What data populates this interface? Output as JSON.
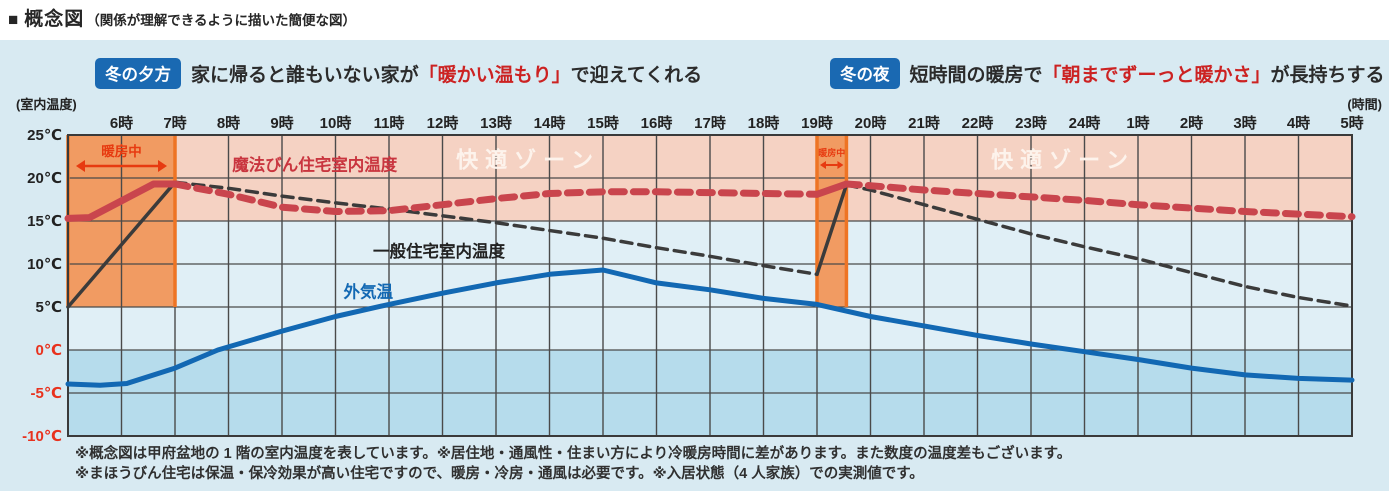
{
  "page": {
    "title_marker": "■",
    "title": "概念図",
    "title_note": "（関係が理解できるように描いた簡便な図）"
  },
  "colors": {
    "panel_bg": "#d8eaf2",
    "badge_blue": "#1a69b2",
    "highlight_red": "#cc2222",
    "axis_label_red": "#e8321e"
  },
  "callouts": [
    {
      "badge": "冬の夕方",
      "pre": "家に帰ると誰もいない家が",
      "highlight": "「暖かい温もり」",
      "post": "で迎えてくれる"
    },
    {
      "badge": "冬の夜",
      "pre": "短時間の暖房で",
      "highlight": "「朝までずーっと暖かさ」",
      "post": "が長持ちする"
    }
  ],
  "notes": [
    "※概念図は甲府盆地の 1 階の室内温度を表しています。※居住地・通風性・住まい方により冷暖房時間に差があります。また数度の温度差もございます。",
    "※まほうびん住宅は保温・保冷効果が高い住宅ですので、暖房・冷房・通風は必要です。※入居状態（4 人家族）での実測値です。"
  ],
  "chart_data": {
    "type": "line",
    "x_axis": {
      "unit_label": "(時間)",
      "start_hour": 5,
      "end_hour": 29,
      "tick_hours": [
        6,
        7,
        8,
        9,
        10,
        11,
        12,
        13,
        14,
        15,
        16,
        17,
        18,
        19,
        20,
        21,
        22,
        23,
        24,
        25,
        26,
        27,
        28,
        29
      ],
      "tick_labels": [
        "6時",
        "7時",
        "8時",
        "9時",
        "10時",
        "11時",
        "12時",
        "13時",
        "14時",
        "15時",
        "16時",
        "17時",
        "18時",
        "19時",
        "20時",
        "21時",
        "22時",
        "23時",
        "24時",
        "1時",
        "2時",
        "3時",
        "4時",
        "5時"
      ]
    },
    "y_axis": {
      "unit_label": "(室内温度)",
      "min": -10,
      "max": 25,
      "ticks": [
        {
          "label": "25℃",
          "value": 25,
          "color": "#222222"
        },
        {
          "label": "20℃",
          "value": 20,
          "color": "#222222"
        },
        {
          "label": "15℃",
          "value": 15,
          "color": "#222222"
        },
        {
          "label": "10℃",
          "value": 10,
          "color": "#222222"
        },
        {
          "label": "5℃",
          "value": 5,
          "color": "#222222"
        },
        {
          "label": "0℃",
          "value": 0,
          "color": "#e8321e"
        },
        {
          "label": "-5℃",
          "value": -5,
          "color": "#e8321e"
        },
        {
          "label": "-10℃",
          "value": -10,
          "color": "#e8321e"
        }
      ]
    },
    "comfort_zone": {
      "label": "快適ゾーン",
      "temp_from": 15,
      "temp_to": 25,
      "color": "#f5d2c3",
      "label_color": "#fdf3ec",
      "label_positions": [
        {
          "hour": 13.6,
          "temp": 21.2
        },
        {
          "hour": 23.6,
          "temp": 21.2
        }
      ]
    },
    "subzero_zone": {
      "temp_from": -10,
      "temp_to": 0,
      "color": "#b6dcec"
    },
    "heating_periods": {
      "label": "暖房中",
      "fill": "#f19b62",
      "border": "#ee7424",
      "label_color": "#e73a10",
      "temp_from": 5,
      "temp_to": 25,
      "bands": [
        {
          "hour_from": 5,
          "hour_to": 7
        },
        {
          "hour_from": 19,
          "hour_to": 19.55
        }
      ]
    },
    "series": [
      {
        "id": "mahoubin",
        "name": "魔法びん住宅室内温度",
        "color": "#c9454d",
        "label_color": "#c9353f",
        "label": {
          "hour": 8.07,
          "temp": 20.9
        },
        "segments": [
          {
            "style": "solid",
            "points": [
              [
                5,
                15.3
              ],
              [
                5.4,
                15.4
              ],
              [
                6.6,
                19.3
              ],
              [
                7,
                19.3
              ]
            ]
          },
          {
            "style": "dashed",
            "points": [
              [
                7,
                19.3
              ],
              [
                8,
                18.1
              ],
              [
                9,
                16.6
              ],
              [
                10,
                16.1
              ],
              [
                11,
                16.2
              ],
              [
                12,
                16.9
              ],
              [
                13,
                17.6
              ],
              [
                14,
                18.2
              ],
              [
                15,
                18.4
              ],
              [
                16,
                18.4
              ],
              [
                17,
                18.3
              ],
              [
                18,
                18.2
              ],
              [
                19,
                18.1
              ]
            ]
          },
          {
            "style": "solid",
            "points": [
              [
                19,
                18.1
              ],
              [
                19.55,
                19.3
              ]
            ]
          },
          {
            "style": "dashed",
            "points": [
              [
                19.55,
                19.3
              ],
              [
                20,
                19.1
              ],
              [
                21,
                18.6
              ],
              [
                22,
                18.2
              ],
              [
                23,
                17.8
              ],
              [
                24,
                17.4
              ],
              [
                25,
                16.9
              ],
              [
                26,
                16.5
              ],
              [
                27,
                16.1
              ],
              [
                28,
                15.8
              ],
              [
                29,
                15.5
              ]
            ]
          }
        ]
      },
      {
        "id": "ippan",
        "name": "一般住宅室内温度",
        "color": "#3b3b3b",
        "label_color": "#222222",
        "label": {
          "hour": 10.7,
          "temp": 10.8
        },
        "segments": [
          {
            "style": "solid",
            "points": [
              [
                5,
                5.0
              ],
              [
                7,
                19.5
              ]
            ]
          },
          {
            "style": "dashed",
            "points": [
              [
                7,
                19.5
              ],
              [
                8,
                18.8
              ],
              [
                9,
                17.9
              ],
              [
                10,
                17.1
              ],
              [
                11,
                16.4
              ],
              [
                12,
                15.6
              ],
              [
                13,
                14.8
              ],
              [
                14,
                13.9
              ],
              [
                15,
                13.0
              ],
              [
                16,
                11.9
              ],
              [
                17,
                10.9
              ],
              [
                18,
                9.8
              ],
              [
                19,
                8.8
              ]
            ]
          },
          {
            "style": "solid",
            "points": [
              [
                19,
                8.8
              ],
              [
                19.55,
                19.2
              ]
            ]
          },
          {
            "style": "dashed",
            "points": [
              [
                19.55,
                19.2
              ],
              [
                20,
                18.6
              ],
              [
                21,
                16.9
              ],
              [
                22,
                15.2
              ],
              [
                23,
                13.5
              ],
              [
                24,
                12.0
              ],
              [
                25,
                10.6
              ],
              [
                26,
                9.0
              ],
              [
                27,
                7.4
              ],
              [
                28,
                6.1
              ],
              [
                29,
                5.1
              ]
            ]
          }
        ]
      },
      {
        "id": "gaikion",
        "name": "外気温",
        "color": "#1268b3",
        "label_color": "#1268b3",
        "label": {
          "hour": 10.15,
          "temp": 6.1
        },
        "segments": [
          {
            "style": "solid",
            "points": [
              [
                5,
                -3.95
              ],
              [
                5.6,
                -4.1
              ],
              [
                6.1,
                -3.9
              ],
              [
                7,
                -2.1
              ],
              [
                7.8,
                0
              ],
              [
                9,
                2.2
              ],
              [
                10,
                3.9
              ],
              [
                11,
                5.3
              ],
              [
                12,
                6.6
              ],
              [
                13,
                7.8
              ],
              [
                14,
                8.8
              ],
              [
                15,
                9.3
              ],
              [
                16,
                7.8
              ],
              [
                17,
                7.0
              ],
              [
                18,
                6.0
              ],
              [
                19,
                5.3
              ],
              [
                20,
                3.9
              ],
              [
                21,
                2.8
              ],
              [
                22,
                1.7
              ],
              [
                23,
                0.7
              ],
              [
                24,
                -0.2
              ],
              [
                25,
                -1.1
              ],
              [
                26,
                -2.1
              ],
              [
                27,
                -2.9
              ],
              [
                28,
                -3.3
              ],
              [
                29,
                -3.5
              ]
            ]
          }
        ]
      }
    ]
  }
}
